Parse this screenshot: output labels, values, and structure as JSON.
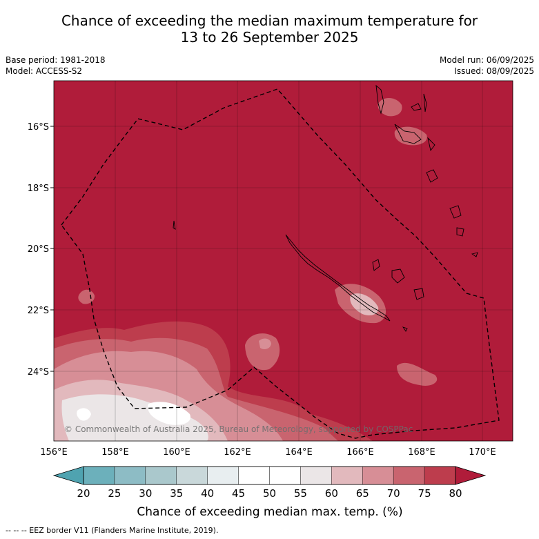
{
  "title": {
    "line1": "Chance of exceeding the median maximum temperature for",
    "line2": "13 to 26 September 2025"
  },
  "meta": {
    "base_period": "Base period: 1981-2018",
    "model": "Model: ACCESS-S2",
    "model_run": "Model run: 06/09/2025",
    "issued": "Issued: 08/09/2025"
  },
  "map": {
    "lat_ticks": [
      "16°S",
      "18°S",
      "20°S",
      "22°S",
      "24°S"
    ],
    "lon_ticks": [
      "156°E",
      "158°E",
      "160°E",
      "162°E",
      "164°E",
      "166°E",
      "168°E",
      "170°E"
    ],
    "copyright": "© Commonwealth of Australia 2025, Bureau of Meteorology, supported by COSPPac",
    "background_color": "#b01c3a"
  },
  "colorbar": {
    "ticks": [
      "20",
      "25",
      "30",
      "35",
      "40",
      "45",
      "50",
      "55",
      "60",
      "65",
      "70",
      "75",
      "80"
    ],
    "colors": [
      "#4fa3b0",
      "#6cb0bb",
      "#8dbcc5",
      "#aac8cc",
      "#c9d8da",
      "#e8eef0",
      "#ffffff",
      "#ffffff",
      "#ebe6e7",
      "#e2b9bd",
      "#d78e96",
      "#c9646f",
      "#bd3d4d",
      "#b01c3a"
    ],
    "label": "Chance of exceeding median max. temp. (%)"
  },
  "footer": {
    "legend": "--  --  -- EEZ border V11 (Flanders Marine Institute, 2019)."
  }
}
